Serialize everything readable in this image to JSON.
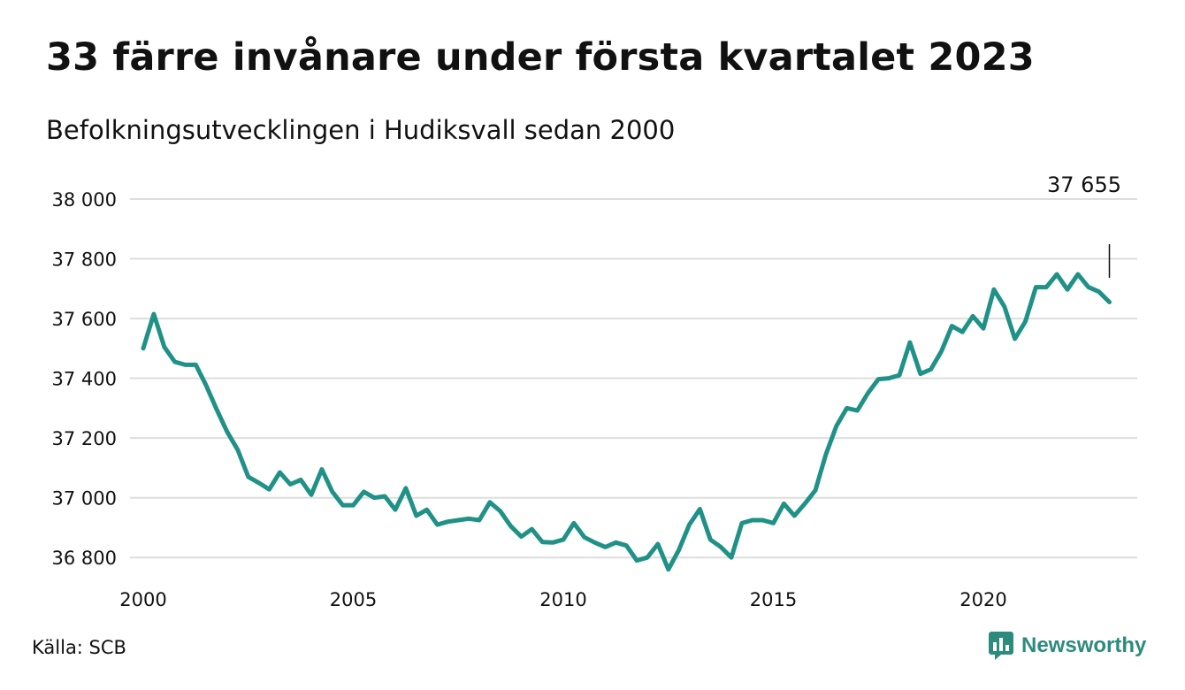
{
  "title": "33 färre invånare under första kvartalet 2023",
  "subtitle": "Befolkningsutvecklingen i Hudiksvall sedan 2000",
  "source": "Källa: SCB",
  "brand": {
    "name": "Newsworthy",
    "icon": "newsworthy-logo-icon",
    "color": "#2c8b7d"
  },
  "chart_data": {
    "type": "line",
    "xlabel": "",
    "ylabel": "",
    "xlim": [
      2000,
      2023.8
    ],
    "ylim": [
      36700,
      38000
    ],
    "xticks": [
      2000,
      2005,
      2010,
      2015,
      2020
    ],
    "xtick_labels": [
      "2000",
      "2005",
      "2010",
      "2015",
      "2020"
    ],
    "yticks": [
      36800,
      37000,
      37200,
      37400,
      37600,
      37800,
      38000
    ],
    "ytick_labels": [
      "36 800",
      "37 000",
      "37 200",
      "37 400",
      "37 600",
      "37 800",
      "38 000"
    ],
    "grid": "horizontal",
    "line_color": "#1f9186",
    "annotation": {
      "text": "37 655",
      "x": 2023.0
    },
    "series": [
      {
        "x": [
          2000.0,
          2000.25,
          2000.5,
          2000.75,
          2001.0,
          2001.25,
          2001.5,
          2001.75,
          2002.0,
          2002.25,
          2002.5,
          2002.75,
          2003.0,
          2003.25,
          2003.5,
          2003.75,
          2004.0,
          2004.25,
          2004.5,
          2004.75,
          2005.0,
          2005.25,
          2005.5,
          2005.75,
          2006.0,
          2006.25,
          2006.5,
          2006.75,
          2007.0,
          2007.25,
          2007.5,
          2007.75,
          2008.0,
          2008.25,
          2008.5,
          2008.75,
          2009.0,
          2009.25,
          2009.5,
          2009.75,
          2010.0,
          2010.25,
          2010.5,
          2010.75,
          2011.0,
          2011.25,
          2011.5,
          2011.75,
          2012.0,
          2012.25,
          2012.5,
          2012.75,
          2013.0,
          2013.25,
          2013.5,
          2013.75,
          2014.0,
          2014.25,
          2014.5,
          2014.75,
          2015.0,
          2015.25,
          2015.5,
          2015.75,
          2016.0,
          2016.25,
          2016.5,
          2016.75,
          2017.0,
          2017.25,
          2017.5,
          2017.75,
          2018.0,
          2018.25,
          2018.5,
          2018.75,
          2019.0,
          2019.25,
          2019.5,
          2019.75,
          2020.0,
          2020.25,
          2020.5,
          2020.75,
          2021.0,
          2021.25,
          2021.5,
          2021.75,
          2022.0,
          2022.25,
          2022.5,
          2022.75,
          2023.0
        ],
        "values": [
          37500,
          37615,
          37505,
          37455,
          37445,
          37445,
          37375,
          37295,
          37220,
          37160,
          37070,
          37050,
          37028,
          37085,
          37045,
          37060,
          37010,
          37095,
          37020,
          36975,
          36975,
          37020,
          37000,
          37005,
          36960,
          37032,
          36940,
          36960,
          36910,
          36920,
          36925,
          36930,
          36925,
          36985,
          36955,
          36905,
          36870,
          36895,
          36852,
          36850,
          36860,
          36915,
          36868,
          36850,
          36835,
          36850,
          36840,
          36790,
          36800,
          36845,
          36760,
          36825,
          36910,
          36962,
          36860,
          36835,
          36800,
          36915,
          36925,
          36925,
          36915,
          36980,
          36940,
          36980,
          37025,
          37145,
          37240,
          37300,
          37292,
          37350,
          37397,
          37400,
          37410,
          37520,
          37415,
          37430,
          37490,
          37575,
          37555,
          37608,
          37567,
          37697,
          37640,
          37532,
          37590,
          37705,
          37705,
          37748,
          37697,
          37748,
          37705,
          37690,
          37655
        ]
      }
    ]
  }
}
